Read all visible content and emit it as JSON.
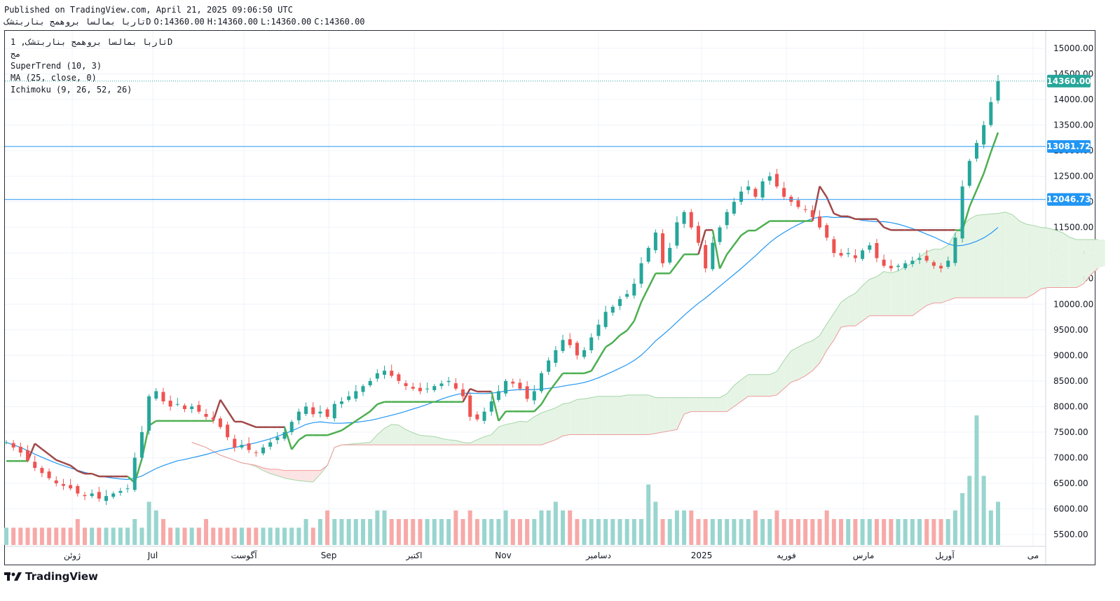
{
  "header": {
    "published": "Published on TradingView.com, April 21, 2025 09:06:50 UTC",
    "symbol_line": "تاربا بمالسا بروهمج بناربتشکD",
    "ohlc": [
      "O:14360.00",
      "H:14360.00",
      "L:14360.00",
      "C:14360.00"
    ]
  },
  "legend": {
    "symbol": "تاربا بمالسا بروهمج بناربتشک, 1D",
    "exchange": "مج",
    "supertrend": "SuperTrend (10, 3)",
    "ma": "MA (25, close, 0)",
    "ichimoku": "Ichimoku (9, 26, 52, 26)"
  },
  "footer": {
    "brand": "TradingView",
    "logo_icon": "tradingview-logo-icon"
  },
  "colors": {
    "up": "#26a69a",
    "down": "#ef5350",
    "supertrend_up": "#4caf50",
    "supertrend_down": "#a04848",
    "ma": "#2196f3",
    "cloud_green": "#e6f4e6",
    "cloud_red": "#fde4e4",
    "hline": "#2196f3",
    "last_price": "#26a69a"
  },
  "chart_data": {
    "type": "candlestick",
    "ylim": [
      5300,
      15300
    ],
    "y_ticks": [
      15000,
      14500,
      14000,
      13500,
      13000,
      12500,
      12000,
      11500,
      11000,
      10500,
      10000,
      9500,
      9000,
      8500,
      8000,
      7500,
      7000,
      6500,
      6000,
      5500
    ],
    "x_labels": [
      "ژوئن",
      "Jul",
      "آگوست",
      "Sep",
      "اکتبر",
      "Nov",
      "دسامبر",
      "2025",
      "فوریه",
      "مارس",
      "آوریل",
      "می"
    ],
    "price_labels": [
      {
        "label": "14360.00",
        "value": 14360,
        "kind": "last"
      },
      {
        "label": "13081.72",
        "value": 13081.72,
        "kind": "hline"
      },
      {
        "label": "12046.73",
        "value": 12046.73,
        "kind": "hline"
      }
    ],
    "series_close": [
      7300,
      7200,
      7100,
      6950,
      6800,
      6700,
      6600,
      6500,
      6450,
      6400,
      6300,
      6250,
      6300,
      6200,
      6250,
      6300,
      6350,
      6400,
      7000,
      7500,
      8200,
      8300,
      8100,
      8000,
      8050,
      7950,
      8000,
      7900,
      7800,
      7750,
      7600,
      7400,
      7200,
      7250,
      7150,
      7100,
      7200,
      7300,
      7400,
      7500,
      7700,
      7900,
      8000,
      7850,
      7900,
      7800,
      8050,
      8100,
      8200,
      8300,
      8400,
      8500,
      8650,
      8700,
      8600,
      8500,
      8400,
      8350,
      8300,
      8350,
      8400,
      8450,
      8500,
      8350,
      8200,
      7800,
      7750,
      7900,
      8100,
      8300,
      8500,
      8450,
      8350,
      8150,
      8300,
      8650,
      8900,
      9100,
      9300,
      9200,
      9000,
      9100,
      9350,
      9600,
      9850,
      9950,
      10100,
      10200,
      10400,
      10800,
      11100,
      11400,
      10800,
      11100,
      11600,
      11800,
      11500,
      11200,
      10700,
      11200,
      11500,
      11800,
      12000,
      12200,
      12300,
      12100,
      12400,
      12500,
      12300,
      12100,
      12000,
      11900,
      11850,
      11700,
      11500,
      11300,
      11000,
      10950,
      11000,
      10900,
      11050,
      11150,
      10900,
      10750,
      10700,
      10750,
      10800,
      10850,
      10900,
      10850,
      10750,
      10700,
      10850,
      11300,
      12300,
      12800,
      13150,
      13500,
      13950,
      14360
    ],
    "volume": [
      2,
      2,
      2,
      2,
      2,
      2,
      2,
      2,
      2,
      2,
      3,
      2,
      2,
      2,
      2,
      2,
      2,
      2,
      3,
      2,
      5,
      4,
      3,
      2,
      2,
      2,
      2,
      2,
      3,
      2,
      2,
      2,
      2,
      2,
      2,
      2,
      2,
      2,
      2,
      2,
      2,
      2,
      3,
      2,
      3,
      4,
      3,
      3,
      3,
      3,
      3,
      3,
      4,
      4,
      3,
      3,
      3,
      3,
      3,
      3,
      3,
      3,
      3,
      4,
      3,
      4,
      3,
      3,
      3,
      3,
      4,
      3,
      3,
      3,
      3,
      4,
      4,
      5,
      4,
      4,
      3,
      3,
      3,
      3,
      3,
      3,
      3,
      3,
      3,
      3,
      7,
      5,
      3,
      3,
      4,
      4,
      4,
      3,
      3,
      3,
      3,
      3,
      3,
      3,
      3,
      4,
      3,
      3,
      4,
      3,
      3,
      3,
      3,
      3,
      3,
      4,
      3,
      3,
      3,
      3,
      3,
      3,
      3,
      3,
      3,
      3,
      3,
      3,
      3,
      3,
      3,
      3,
      3,
      4,
      6,
      8,
      15,
      8,
      4,
      5
    ]
  }
}
